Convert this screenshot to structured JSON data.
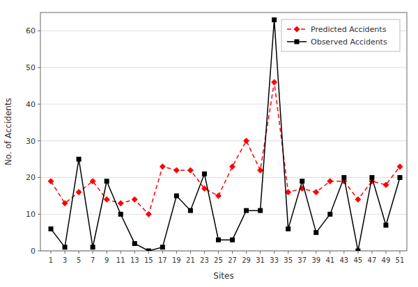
{
  "chart_data": {
    "type": "line",
    "xlabel": "Sites",
    "ylabel": "No. of Accidents",
    "x": [
      1,
      3,
      5,
      7,
      9,
      11,
      13,
      15,
      17,
      19,
      21,
      23,
      25,
      27,
      29,
      31,
      33,
      35,
      37,
      39,
      41,
      43,
      45,
      47,
      49,
      51
    ],
    "series": [
      {
        "name": "Predicted Accidents",
        "color": "#ff0000",
        "marker": "diamond",
        "line_style": "dashed",
        "values": [
          19,
          13,
          16,
          19,
          14,
          13,
          14,
          10,
          23,
          22,
          22,
          17,
          15,
          23,
          30,
          22,
          46,
          16,
          17,
          16,
          19,
          19,
          14,
          19,
          18,
          23
        ]
      },
      {
        "name": "Observed Accidents",
        "color": "#000000",
        "marker": "square",
        "line_style": "solid",
        "values": [
          6,
          1,
          25,
          1,
          19,
          10,
          2,
          0,
          1,
          15,
          11,
          21,
          3,
          3,
          11,
          11,
          63,
          6,
          19,
          5,
          10,
          20,
          0,
          20,
          7,
          20
        ]
      }
    ],
    "xlim": [
      -0.5,
      52
    ],
    "ylim": [
      0,
      65
    ],
    "xticks": [
      1,
      3,
      5,
      7,
      9,
      11,
      13,
      15,
      17,
      19,
      21,
      23,
      25,
      27,
      29,
      31,
      33,
      35,
      37,
      39,
      41,
      43,
      45,
      47,
      49,
      51
    ],
    "yticks": [
      0,
      10,
      20,
      30,
      40,
      50,
      60
    ],
    "grid": "y",
    "legend": "upper right"
  }
}
